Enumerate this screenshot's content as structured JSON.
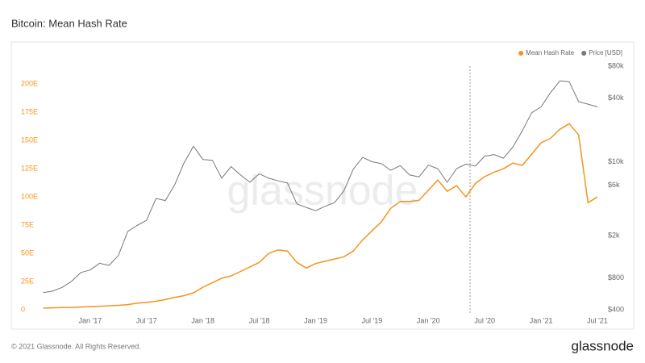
{
  "chart_data": {
    "type": "line",
    "title": "Bitcoin: Mean Hash Rate",
    "footer": "© 2021 Glassnode. All Rights Reserved.",
    "brand": "glassnode",
    "watermark": "glassnode",
    "x": [
      "2016-08",
      "2016-09",
      "2016-10",
      "2016-11",
      "2016-12",
      "2017-01",
      "2017-02",
      "2017-03",
      "2017-04",
      "2017-05",
      "2017-06",
      "2017-07",
      "2017-08",
      "2017-09",
      "2017-10",
      "2017-11",
      "2017-12",
      "2018-01",
      "2018-02",
      "2018-03",
      "2018-04",
      "2018-05",
      "2018-06",
      "2018-07",
      "2018-08",
      "2018-09",
      "2018-10",
      "2018-11",
      "2018-12",
      "2019-01",
      "2019-02",
      "2019-03",
      "2019-04",
      "2019-05",
      "2019-06",
      "2019-07",
      "2019-08",
      "2019-09",
      "2019-10",
      "2019-11",
      "2019-12",
      "2020-01",
      "2020-02",
      "2020-03",
      "2020-04",
      "2020-05",
      "2020-06",
      "2020-07",
      "2020-08",
      "2020-09",
      "2020-10",
      "2020-11",
      "2020-12",
      "2021-01",
      "2021-02",
      "2021-03",
      "2021-04",
      "2021-05",
      "2021-06",
      "2021-07"
    ],
    "xlim": [
      "2016-07",
      "2021-07"
    ],
    "xticks": [
      {
        "value": "2017-01",
        "label": "Jan '17"
      },
      {
        "value": "2017-07",
        "label": "Jul '17"
      },
      {
        "value": "2018-01",
        "label": "Jan '18"
      },
      {
        "value": "2018-07",
        "label": "Jul '18"
      },
      {
        "value": "2019-01",
        "label": "Jan '19"
      },
      {
        "value": "2019-07",
        "label": "Jul '19"
      },
      {
        "value": "2020-01",
        "label": "Jan '20"
      },
      {
        "value": "2020-07",
        "label": "Jul '20"
      },
      {
        "value": "2021-01",
        "label": "Jan '21"
      },
      {
        "value": "2021-07",
        "label": "Jul '21"
      }
    ],
    "ylim": [
      0,
      216
    ],
    "yticks": [
      0,
      {
        "value": 25,
        "label": "25E"
      },
      {
        "value": 50,
        "label": "50E"
      },
      {
        "value": 75,
        "label": "75E"
      },
      {
        "value": 100,
        "label": "100E"
      },
      {
        "value": 125,
        "label": "125E"
      },
      {
        "value": 150,
        "label": "150E"
      },
      {
        "value": 175,
        "label": "175E"
      },
      {
        "value": 200,
        "label": "200E"
      }
    ],
    "y2lim": [
      400,
      80000
    ],
    "y2scale": "log",
    "y2ticks": [
      {
        "value": 400,
        "label": "$400"
      },
      {
        "value": 800,
        "label": "$800"
      },
      {
        "value": 2000,
        "label": "$2k"
      },
      {
        "value": 6000,
        "label": "$6k"
      },
      {
        "value": 10000,
        "label": "$10k"
      },
      {
        "value": 40000,
        "label": "$40k"
      },
      {
        "value": 80000,
        "label": "$80k"
      }
    ],
    "legend": "top-right",
    "series": [
      {
        "name": "Mean Hash Rate",
        "color": "#f7931a",
        "axis": "y",
        "values": [
          1.5,
          1.7,
          1.9,
          2.1,
          2.4,
          2.8,
          3.1,
          3.5,
          3.9,
          4.6,
          5.8,
          6.5,
          7.5,
          9,
          11,
          12.5,
          15,
          20,
          24,
          28,
          30,
          34,
          38,
          42,
          50,
          53,
          52,
          42,
          37,
          41,
          43,
          45,
          47,
          52,
          62,
          70,
          78,
          90,
          96,
          96,
          97,
          106,
          115,
          105,
          110,
          100,
          112,
          118,
          122,
          125,
          130,
          128,
          138,
          148,
          152,
          160,
          165,
          155,
          95,
          100
        ]
      },
      {
        "name": "Price [USD]",
        "color": "#777777",
        "axis": "y2",
        "values": [
          580,
          600,
          650,
          740,
          900,
          950,
          1100,
          1050,
          1300,
          2200,
          2500,
          2800,
          4500,
          4300,
          6100,
          9800,
          14000,
          10500,
          10300,
          7000,
          9000,
          7500,
          6400,
          7700,
          7000,
          6600,
          6300,
          4000,
          3700,
          3450,
          3800,
          4100,
          5300,
          8500,
          11000,
          10000,
          9600,
          8300,
          9200,
          7500,
          7200,
          9300,
          8600,
          6400,
          8600,
          9500,
          9100,
          11300,
          11700,
          10800,
          13800,
          19600,
          29000,
          33000,
          45000,
          58000,
          57000,
          37000,
          35000,
          33000
        ]
      }
    ]
  }
}
